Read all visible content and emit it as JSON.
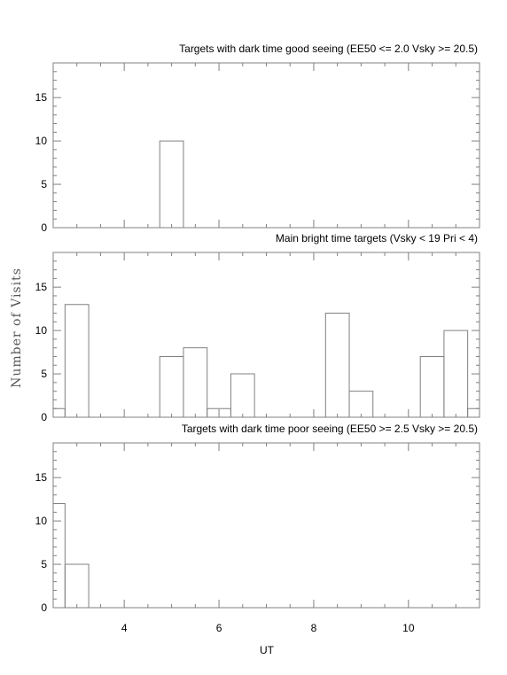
{
  "chart_data": {
    "type": "bar",
    "style": "step-histogram",
    "ylabel": "Number of Visits",
    "xlabel": "UT",
    "xlim": [
      2.5,
      11.5
    ],
    "ylim": [
      0,
      19
    ],
    "bin_width": 0.5,
    "xticks_major": [
      4,
      6,
      8,
      10
    ],
    "xticks_minor_step": 0.5,
    "yticks_major": [
      0,
      5,
      10,
      15
    ],
    "yticks_minor_step": 1,
    "panels": [
      {
        "title": "Targets with dark time good seeing (EE50 <= 2.0 Vsky >= 20.5)",
        "bins": [
          {
            "x0": 4.75,
            "x1": 5.25,
            "y": 10
          }
        ]
      },
      {
        "title": "Main bright time targets (Vsky < 19 Pri < 4)",
        "bins": [
          {
            "x0": 2.5,
            "x1": 2.75,
            "y": 1
          },
          {
            "x0": 2.75,
            "x1": 3.25,
            "y": 13
          },
          {
            "x0": 3.25,
            "x1": 4.75,
            "y": 0
          },
          {
            "x0": 4.75,
            "x1": 5.25,
            "y": 7
          },
          {
            "x0": 5.25,
            "x1": 5.75,
            "y": 8
          },
          {
            "x0": 5.75,
            "x1": 6.25,
            "y": 1
          },
          {
            "x0": 6.25,
            "x1": 6.75,
            "y": 5
          },
          {
            "x0": 6.75,
            "x1": 8.25,
            "y": 0
          },
          {
            "x0": 8.25,
            "x1": 8.75,
            "y": 12
          },
          {
            "x0": 8.75,
            "x1": 9.25,
            "y": 3
          },
          {
            "x0": 9.25,
            "x1": 10.25,
            "y": 0
          },
          {
            "x0": 10.25,
            "x1": 10.75,
            "y": 7
          },
          {
            "x0": 10.75,
            "x1": 11.25,
            "y": 10
          },
          {
            "x0": 11.25,
            "x1": 11.5,
            "y": 1
          }
        ]
      },
      {
        "title": "Targets with dark time poor seeing (EE50 >= 2.5 Vsky >= 20.5)",
        "bins": [
          {
            "x0": 2.5,
            "x1": 2.75,
            "y": 12
          },
          {
            "x0": 2.75,
            "x1": 3.25,
            "y": 5
          },
          {
            "x0": 3.25,
            "x1": 11.5,
            "y": 0
          }
        ]
      }
    ]
  }
}
